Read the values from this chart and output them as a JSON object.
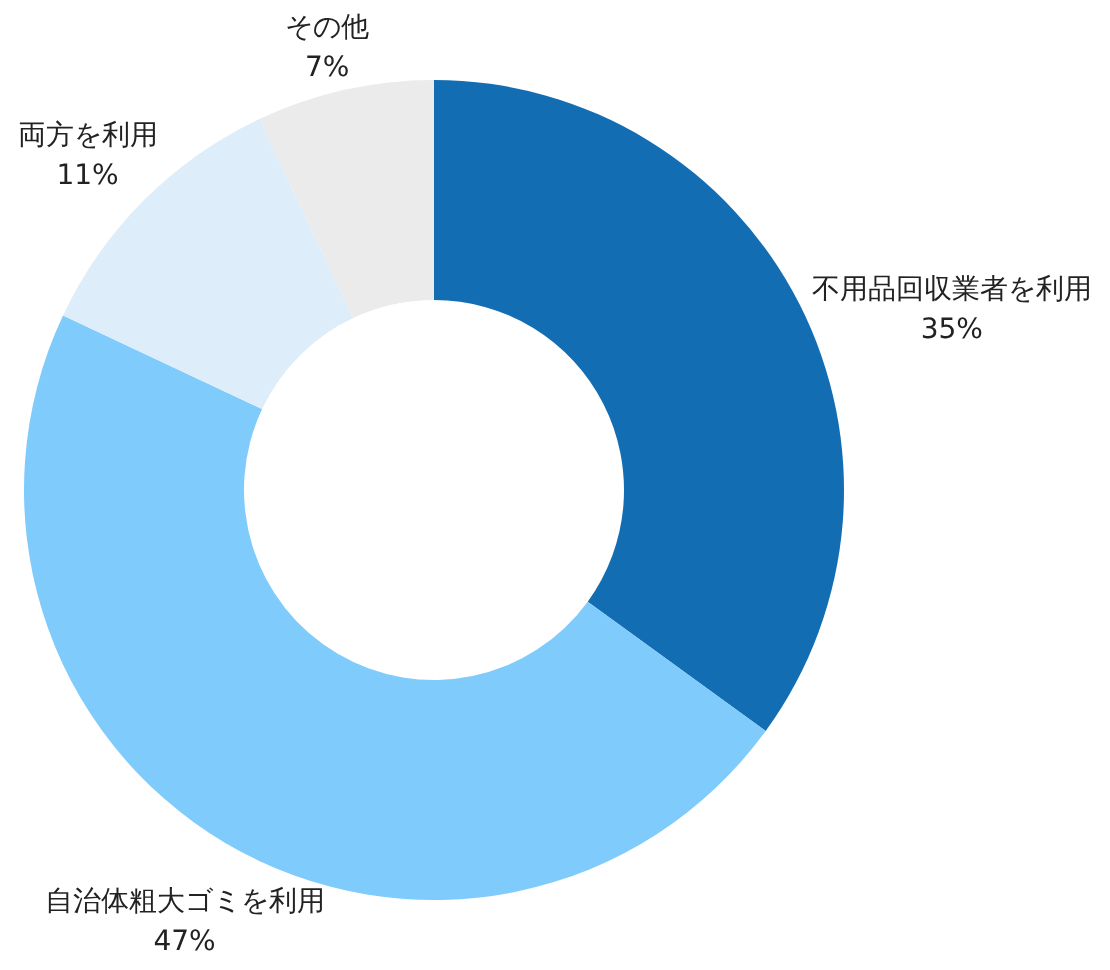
{
  "chart_data": {
    "type": "donut",
    "categories": [
      "不用品回収業者を利用",
      "自治体粗大ゴミを利用",
      "両方を利用",
      "その他"
    ],
    "values": [
      35,
      47,
      11,
      7
    ],
    "value_labels": [
      "35%",
      "47%",
      "11%",
      "7%"
    ],
    "colors": [
      "#136db3",
      "#7fcbfc",
      "#ddedf9",
      "#ebebeb"
    ]
  }
}
